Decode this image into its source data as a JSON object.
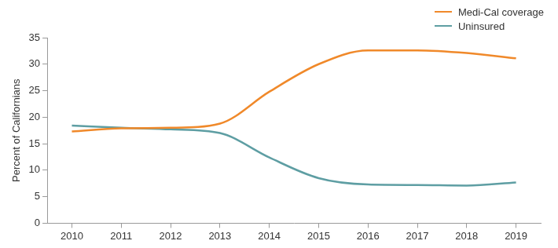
{
  "chart_data": {
    "type": "line",
    "y_label": "Percent of Californians",
    "categories": [
      "2010",
      "2011",
      "2012",
      "2013",
      "2014",
      "2015",
      "2016",
      "2017",
      "2018",
      "2019"
    ],
    "series": [
      {
        "name": "Medi-Cal coverage",
        "color": "#f0892a",
        "values": [
          17.3,
          17.9,
          18.0,
          18.8,
          24.8,
          30.0,
          32.6,
          32.6,
          32.1,
          31.1
        ]
      },
      {
        "name": "Uninsured",
        "color": "#5e9ea3",
        "values": [
          18.4,
          18.0,
          17.7,
          17.0,
          12.4,
          8.5,
          7.3,
          7.2,
          7.1,
          7.7
        ]
      }
    ],
    "ylim": [
      0,
      35
    ],
    "yticks": [
      0,
      5,
      10,
      15,
      20,
      25,
      30,
      35
    ],
    "grid": false,
    "legend": "upper right"
  }
}
